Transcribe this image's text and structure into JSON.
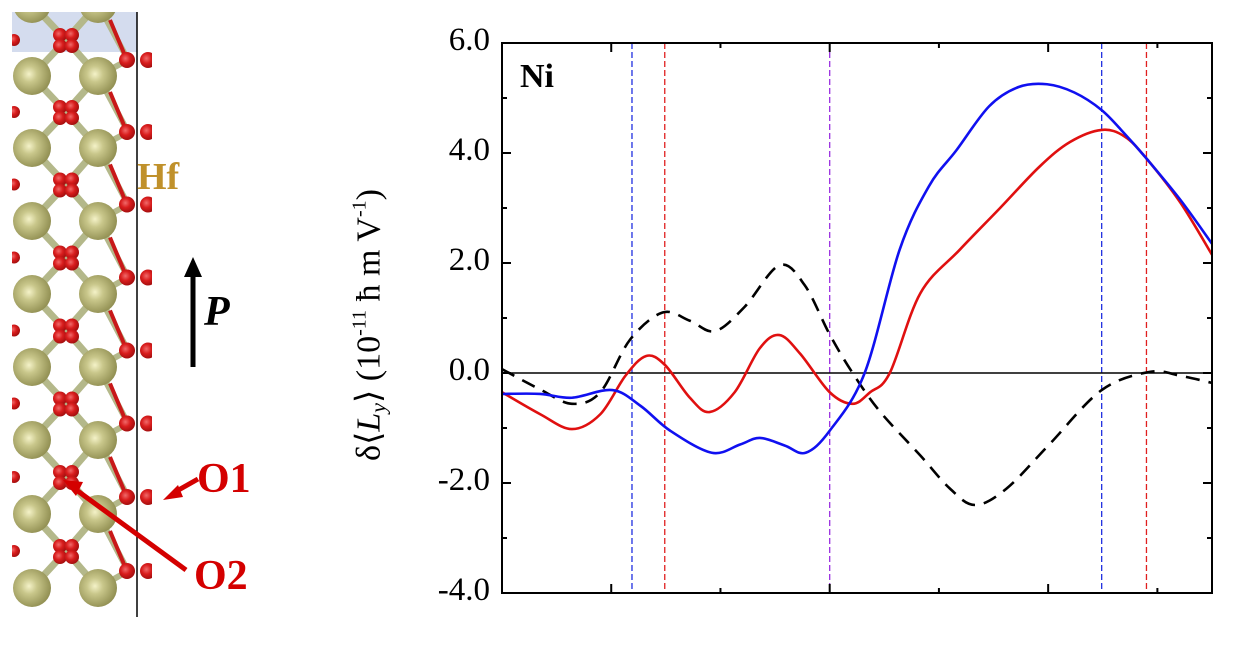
{
  "structure": {
    "labels": {
      "hf": "Hf",
      "o1": "O1",
      "o2": "O2",
      "polarization": "P"
    },
    "colors": {
      "hf_atom": "#a9a767",
      "hf_highlight": "#f4f2c8",
      "o_atom": "#d91d1d",
      "bond": "#b4b88a",
      "hf_label": "#c0912b",
      "o_label": "#d40000",
      "top_shade": "#d4dcee"
    }
  },
  "chart_data": {
    "type": "line",
    "title": "",
    "panel_label": "Ni",
    "xlabel": "",
    "ylabel": "δ⟨L_y⟩ (10^-11 ħ m V^-1)",
    "ylabel_parts": {
      "prefix": "δ⟨",
      "var": "L",
      "sub": "y",
      "suffix": "⟩ (10",
      "exp1": "-11",
      "unit": " ħ m V",
      "exp2": "-1",
      "close": ")"
    },
    "xlim": [
      0,
      6.5
    ],
    "ylim": [
      -4.0,
      6.0
    ],
    "yticks": [
      6.0,
      4.0,
      2.0,
      0.0,
      -2.0,
      -4.0
    ],
    "ytick_labels": [
      "6.0",
      "4.0",
      "2.0",
      "0.0",
      "-2.0",
      "-4.0"
    ],
    "y_minor_ticks": [
      5.0,
      3.0,
      1.0,
      -1.0,
      -3.0
    ],
    "x_major_ticks": [
      1,
      3,
      5
    ],
    "x_minor_ticks": [
      2,
      4,
      6
    ],
    "xtick_labels": [],
    "grid": false,
    "legend": null,
    "zero_line": true,
    "vertical_dashed_lines": [
      {
        "x": 1.19,
        "color": "#1f2fe0"
      },
      {
        "x": 1.49,
        "color": "#e01f1f"
      },
      {
        "x": 3.0,
        "color": "#9a2fe0"
      },
      {
        "x": 5.49,
        "color": "#1f2fe0"
      },
      {
        "x": 5.9,
        "color": "#e01f1f"
      }
    ],
    "series": [
      {
        "name": "black-dashed",
        "color": "#000000",
        "style": "dashed",
        "x": [
          0.0,
          0.35,
          0.64,
          0.9,
          1.17,
          1.47,
          1.72,
          1.95,
          2.22,
          2.54,
          2.77,
          3.0,
          3.21,
          3.46,
          3.83,
          4.1,
          4.33,
          4.62,
          5.01,
          5.49,
          5.93,
          6.21,
          6.5
        ],
        "values": [
          0.07,
          -0.3,
          -0.56,
          -0.35,
          0.6,
          1.1,
          0.95,
          0.76,
          1.2,
          1.96,
          1.6,
          0.7,
          0.0,
          -0.7,
          -1.5,
          -2.1,
          -2.4,
          -2.1,
          -1.3,
          -0.31,
          0.02,
          -0.05,
          -0.18
        ]
      },
      {
        "name": "red",
        "color": "#e01010",
        "style": "solid",
        "x": [
          0.0,
          0.35,
          0.64,
          0.9,
          1.13,
          1.32,
          1.49,
          1.72,
          1.9,
          2.13,
          2.36,
          2.54,
          2.73,
          3.0,
          3.21,
          3.37,
          3.55,
          3.83,
          4.19,
          4.56,
          4.92,
          5.2,
          5.49,
          5.7,
          5.9,
          6.21,
          6.5
        ],
        "values": [
          -0.35,
          -0.75,
          -1.02,
          -0.75,
          -0.05,
          0.31,
          0.15,
          -0.45,
          -0.71,
          -0.35,
          0.45,
          0.69,
          0.35,
          -0.35,
          -0.56,
          -0.35,
          0.0,
          1.45,
          2.24,
          3.0,
          3.75,
          4.2,
          4.42,
          4.3,
          3.9,
          3.1,
          2.15
        ]
      },
      {
        "name": "blue",
        "color": "#1010f0",
        "style": "solid",
        "x": [
          0.0,
          0.35,
          0.64,
          1.01,
          1.27,
          1.54,
          1.92,
          2.18,
          2.36,
          2.59,
          2.78,
          3.0,
          3.32,
          3.64,
          3.91,
          4.16,
          4.46,
          4.73,
          4.99,
          5.24,
          5.49,
          5.7,
          5.9,
          6.21,
          6.5
        ],
        "values": [
          -0.38,
          -0.38,
          -0.45,
          -0.31,
          -0.6,
          -1.05,
          -1.45,
          -1.3,
          -1.18,
          -1.32,
          -1.45,
          -1.05,
          0.0,
          2.24,
          3.4,
          4.05,
          4.85,
          5.2,
          5.25,
          5.1,
          4.78,
          4.35,
          3.9,
          3.15,
          2.35
        ]
      }
    ]
  }
}
